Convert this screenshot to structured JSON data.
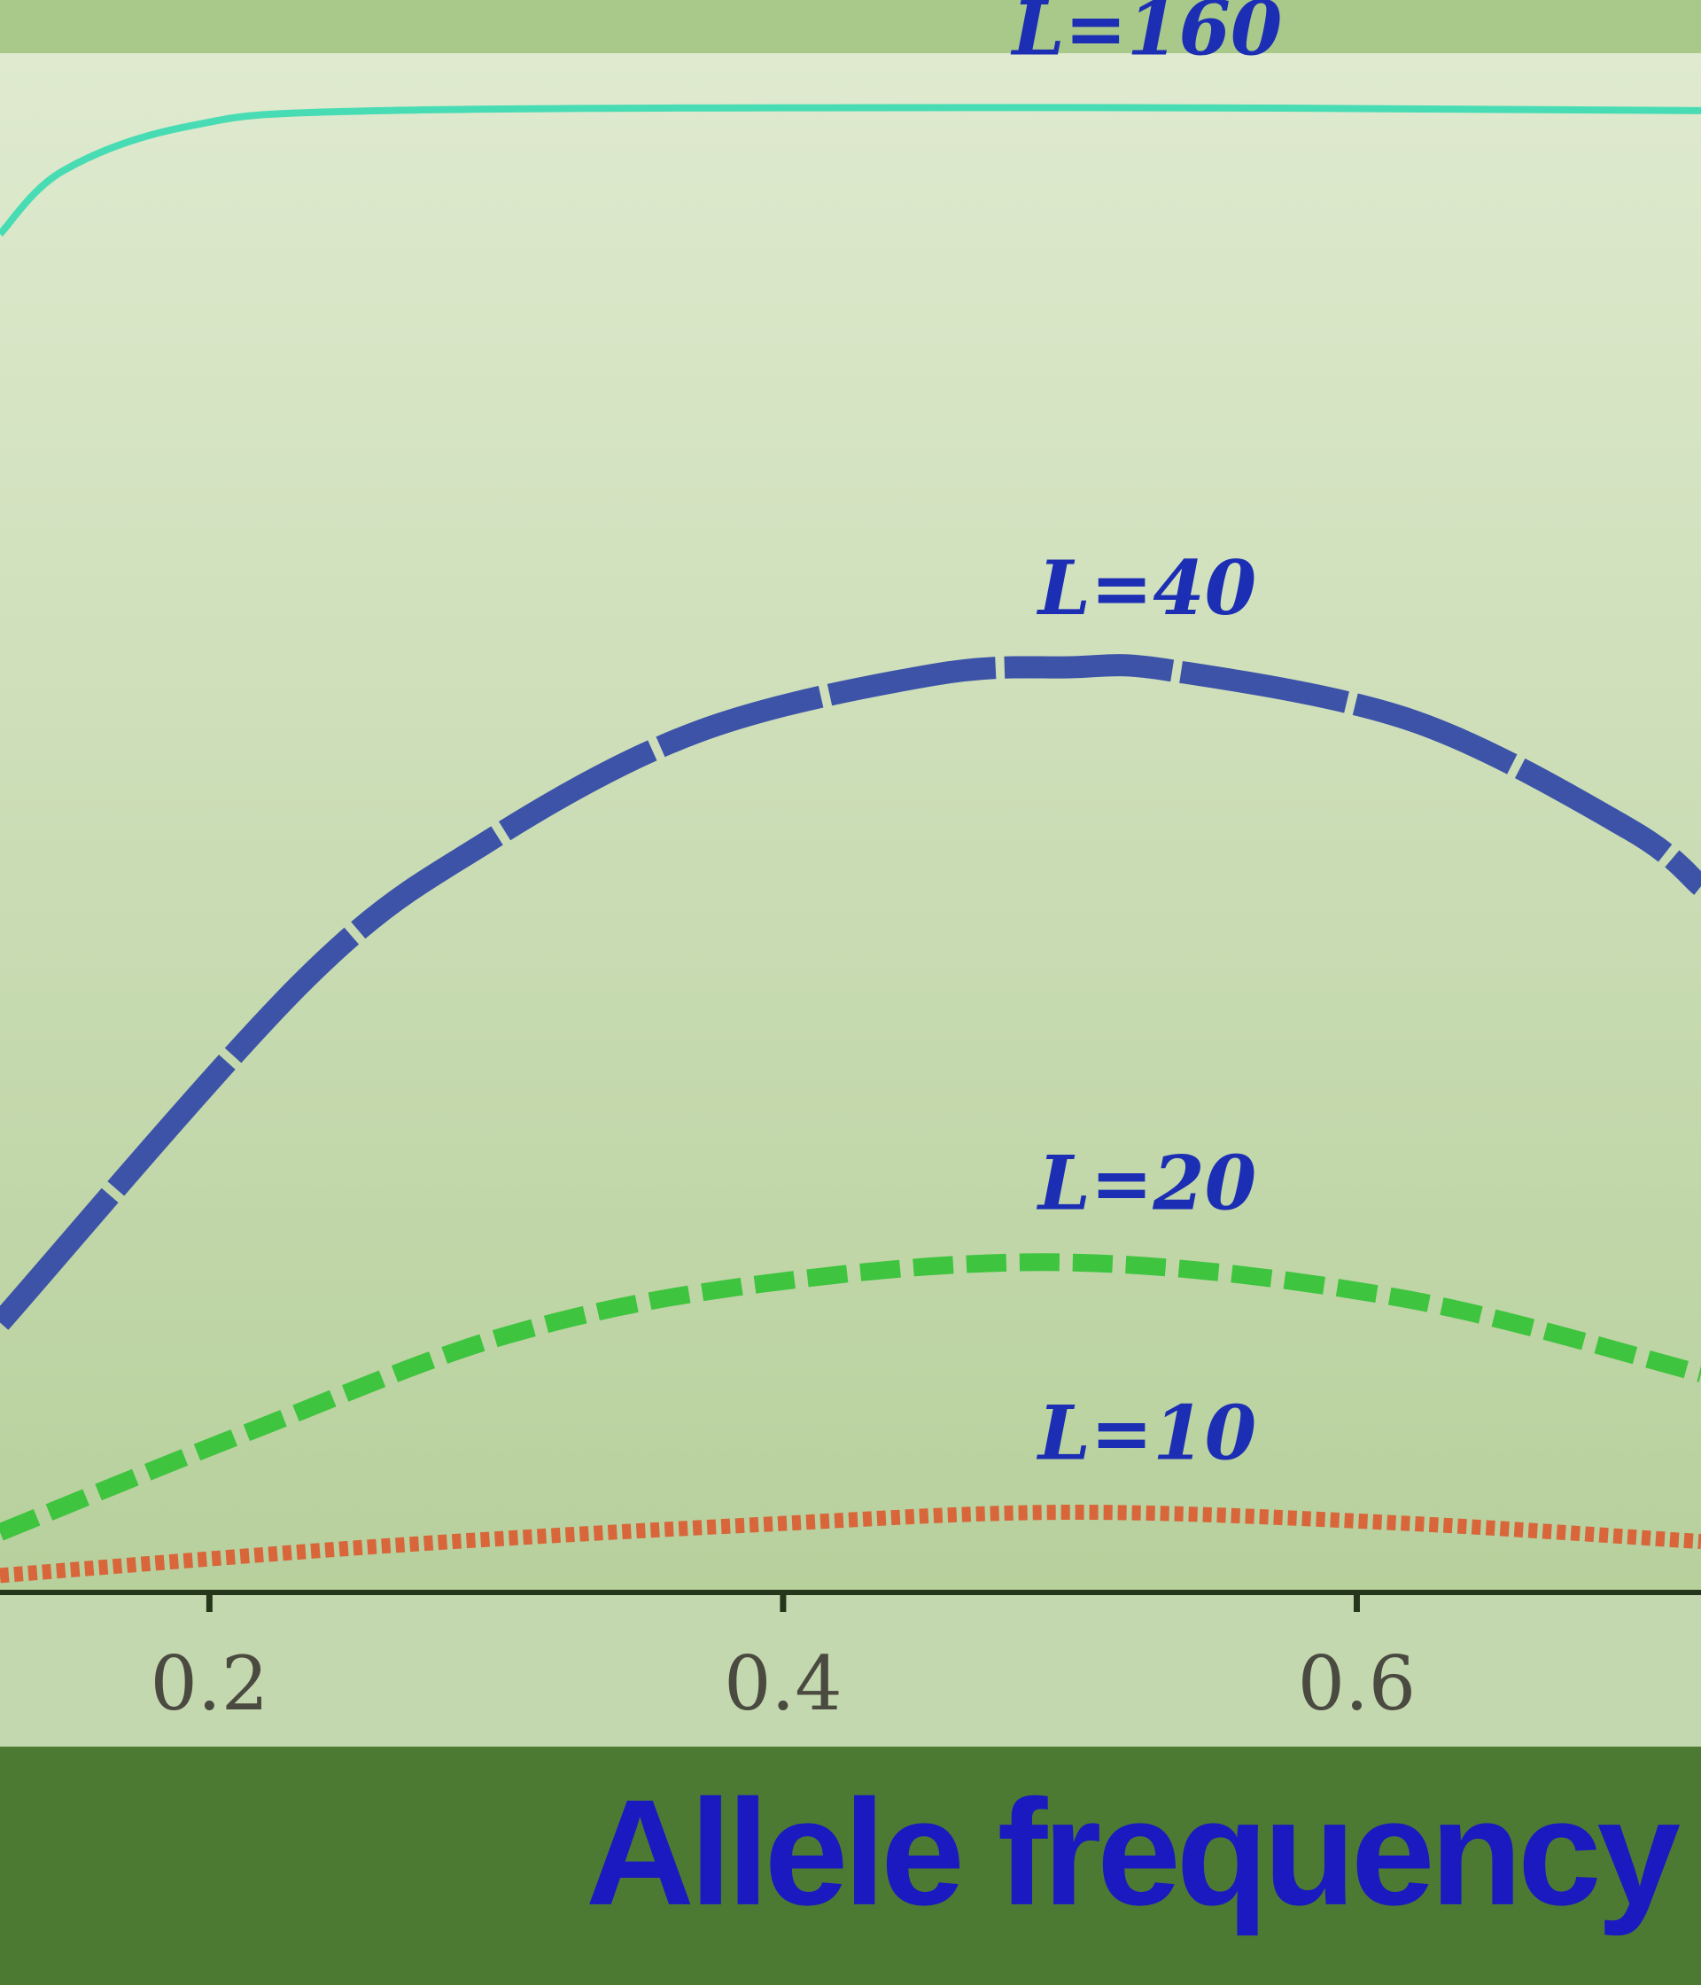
{
  "chart_data": {
    "type": "line",
    "x_label": "Allele frequency",
    "xlim": [
      0.127,
      0.72
    ],
    "xticks": [
      0.2,
      0.4,
      0.6
    ],
    "ylim": [
      0,
      1
    ],
    "series": [
      {
        "name": "L=160",
        "color": "#48dcb4",
        "style": "solid",
        "x": [
          0.127,
          0.149,
          0.193,
          0.26,
          0.5,
          0.72
        ],
        "values": [
          0.881,
          0.922,
          0.951,
          0.961,
          0.963,
          0.961
        ]
      },
      {
        "name": "L=40",
        "color": "#3c53a8",
        "style": "dashed",
        "x": [
          0.127,
          0.233,
          0.297,
          0.37,
          0.452,
          0.5,
          0.535,
          0.62,
          0.695,
          0.72
        ],
        "values": [
          0.175,
          0.397,
          0.487,
          0.558,
          0.595,
          0.6,
          0.598,
          0.565,
          0.495,
          0.458
        ]
      },
      {
        "name": "L=20",
        "color": "#3ec43e",
        "style": "dashed",
        "x": [
          0.127,
          0.215,
          0.304,
          0.392,
          0.5,
          0.615,
          0.72
        ],
        "values": [
          0.039,
          0.105,
          0.167,
          0.2,
          0.214,
          0.191,
          0.142
        ]
      },
      {
        "name": "L=10",
        "color": "#d8663a",
        "style": "dotted",
        "x": [
          0.127,
          0.26,
          0.392,
          0.5,
          0.615,
          0.72
        ],
        "values": [
          0.011,
          0.03,
          0.044,
          0.052,
          0.045,
          0.033
        ]
      }
    ]
  }
}
